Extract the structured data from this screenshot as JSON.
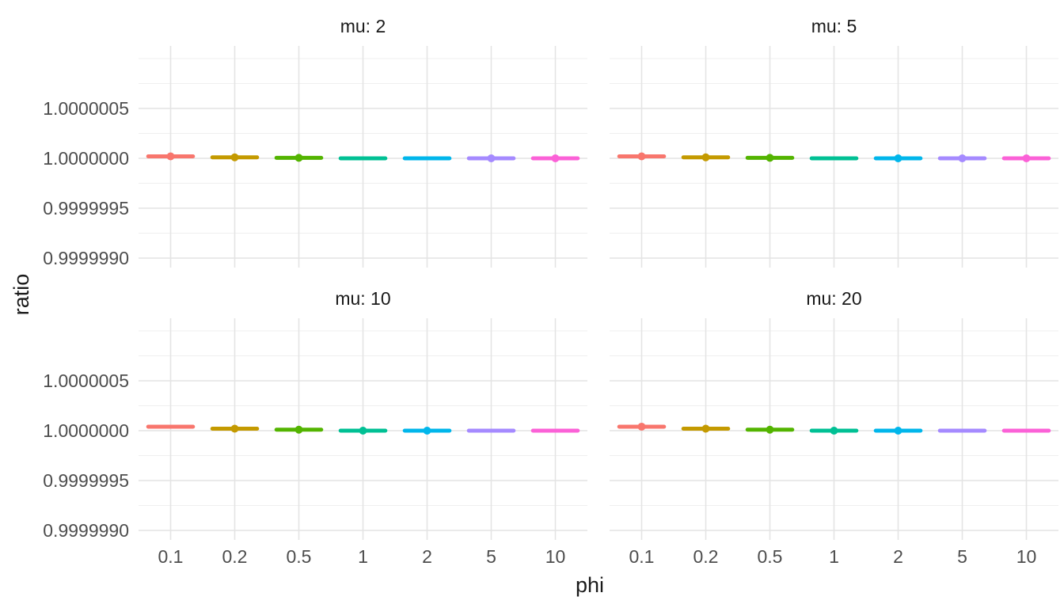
{
  "figure": {
    "background": "#FFFFFF",
    "panel_background": "#FFFFFF",
    "grid_major_color": "#E4E4E4",
    "grid_minor_color": "#EFEFEF",
    "axis_text_color": "#4D4D4D",
    "title_text_color": "#1A1A1A"
  },
  "chart_data": {
    "type": "pointrange",
    "faceting": "grid by mu (2 columns x 2 rows)",
    "title": "",
    "xlabel": "phi",
    "ylabel": "ratio",
    "legend": "none",
    "grid": true,
    "x_categories": [
      "0.1",
      "0.2",
      "0.5",
      "1",
      "2",
      "5",
      "10"
    ],
    "y_tick_labels": [
      "1.0000005",
      "1.0000000",
      "0.9999995",
      "0.9999990"
    ],
    "y_major_breaks": [
      1.0000005,
      1.0,
      0.9999995,
      0.999999
    ],
    "y_minor_breaks": [
      1.000001,
      1.00000075,
      1.00000025,
      0.99999975,
      0.99999925
    ],
    "ylim": [
      0.99999888,
      1.00000113
    ],
    "bar_halfwidth_fraction": 0.38,
    "phi_colors": [
      "#F8766D",
      "#C49A00",
      "#53B400",
      "#00C094",
      "#00B6EB",
      "#A58AFF",
      "#FB61D7"
    ],
    "facets": [
      {
        "label": "mu: 2",
        "points": [
          {
            "phi": "0.1",
            "ratio": 1.00000002,
            "dot": true
          },
          {
            "phi": "0.2",
            "ratio": 1.00000001,
            "dot": true
          },
          {
            "phi": "0.5",
            "ratio": 1.000000005,
            "dot": true
          },
          {
            "phi": "1",
            "ratio": 1.0,
            "dot": false
          },
          {
            "phi": "2",
            "ratio": 1.0,
            "dot": false
          },
          {
            "phi": "5",
            "ratio": 1.0,
            "dot": true
          },
          {
            "phi": "10",
            "ratio": 1.0,
            "dot": true
          }
        ]
      },
      {
        "label": "mu: 5",
        "points": [
          {
            "phi": "0.1",
            "ratio": 1.00000002,
            "dot": true
          },
          {
            "phi": "0.2",
            "ratio": 1.00000001,
            "dot": true
          },
          {
            "phi": "0.5",
            "ratio": 1.000000005,
            "dot": true
          },
          {
            "phi": "1",
            "ratio": 1.0,
            "dot": false
          },
          {
            "phi": "2",
            "ratio": 1.0,
            "dot": true
          },
          {
            "phi": "5",
            "ratio": 1.0,
            "dot": true
          },
          {
            "phi": "10",
            "ratio": 1.0,
            "dot": true
          }
        ]
      },
      {
        "label": "mu: 10",
        "points": [
          {
            "phi": "0.1",
            "ratio": 1.00000004,
            "dot": false
          },
          {
            "phi": "0.2",
            "ratio": 1.00000002,
            "dot": true
          },
          {
            "phi": "0.5",
            "ratio": 1.00000001,
            "dot": true
          },
          {
            "phi": "1",
            "ratio": 1.0,
            "dot": true
          },
          {
            "phi": "2",
            "ratio": 1.0,
            "dot": true
          },
          {
            "phi": "5",
            "ratio": 1.0,
            "dot": false
          },
          {
            "phi": "10",
            "ratio": 1.0,
            "dot": false
          }
        ]
      },
      {
        "label": "mu: 20",
        "points": [
          {
            "phi": "0.1",
            "ratio": 1.00000004,
            "dot": true
          },
          {
            "phi": "0.2",
            "ratio": 1.00000002,
            "dot": true
          },
          {
            "phi": "0.5",
            "ratio": 1.00000001,
            "dot": true
          },
          {
            "phi": "1",
            "ratio": 1.0,
            "dot": true
          },
          {
            "phi": "2",
            "ratio": 1.0,
            "dot": true
          },
          {
            "phi": "5",
            "ratio": 1.0,
            "dot": false
          },
          {
            "phi": "10",
            "ratio": 1.0,
            "dot": false
          }
        ]
      }
    ]
  }
}
